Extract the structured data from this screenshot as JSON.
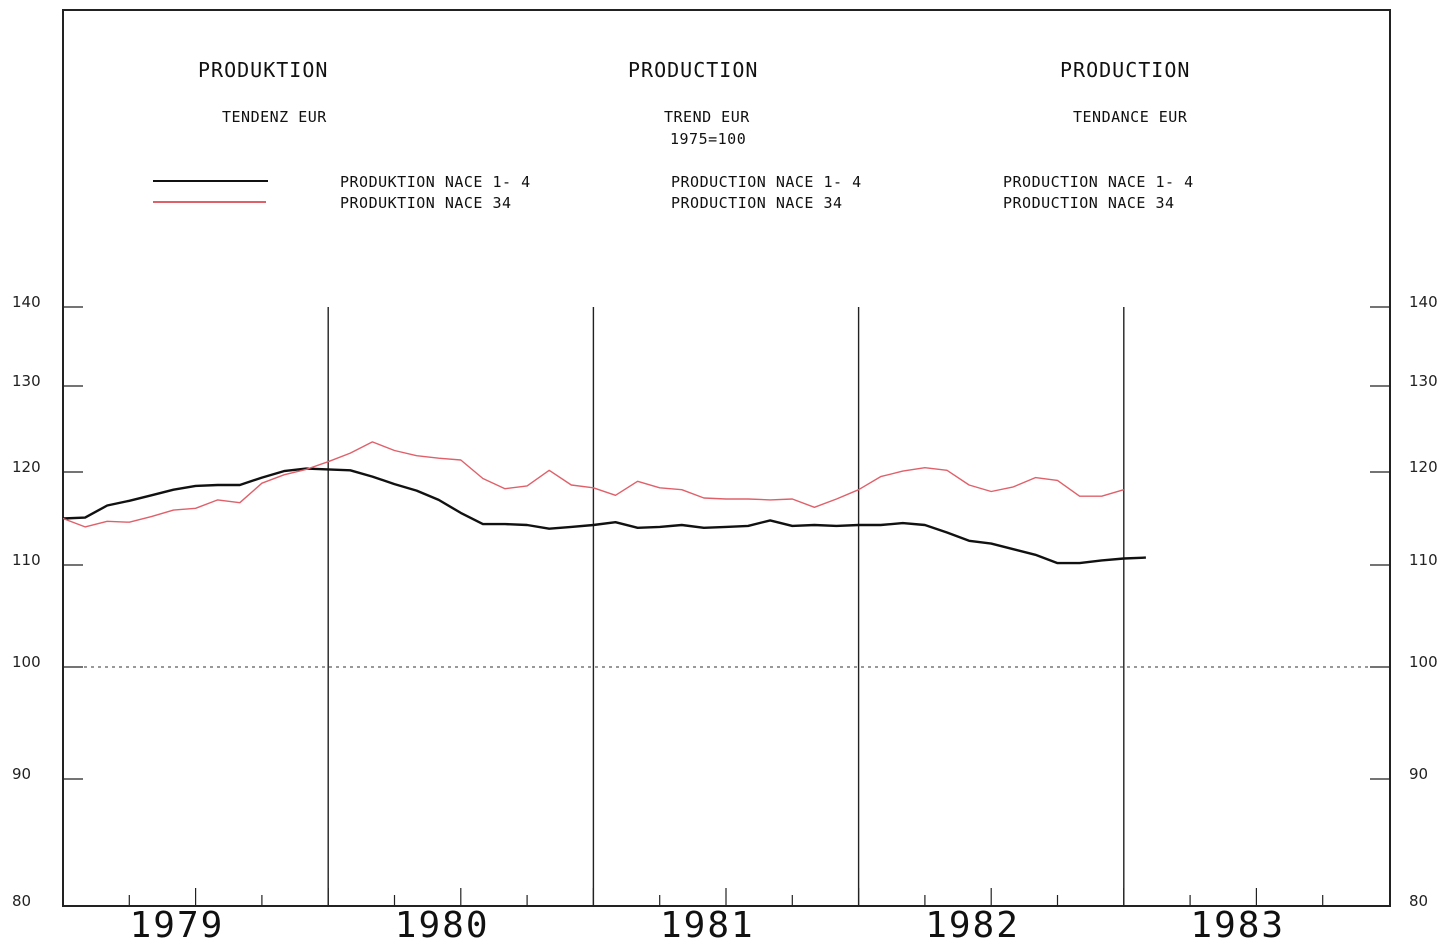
{
  "headers": [
    {
      "title": "PRODUKTION",
      "subtitle": "TENDENZ EUR",
      "legend": [
        "PRODUKTION NACE 1- 4",
        "PRODUKTION NACE 34"
      ]
    },
    {
      "title": "PRODUCTION",
      "subtitle": "TREND EUR",
      "base": "1975=100",
      "legend": [
        "PRODUCTION NACE 1- 4",
        "PRODUCTION NACE 34"
      ]
    },
    {
      "title": "PRODUCTION",
      "subtitle": "TENDANCE EUR",
      "legend": [
        "PRODUCTION NACE 1- 4",
        "PRODUCTION NACE 34"
      ]
    }
  ],
  "chart_data": {
    "type": "line",
    "title": "",
    "xlabel": "",
    "ylabel": "",
    "ylim": [
      80,
      140
    ],
    "yticks": [
      80,
      90,
      100,
      110,
      120,
      130,
      140
    ],
    "years": [
      "1979",
      "1980",
      "1981",
      "1982",
      "1983"
    ],
    "x_unit": "months from Jan 1979",
    "reference_line": 100,
    "grid": false,
    "series": [
      {
        "name": "PRODUKTION NACE 1- 4",
        "color": "#111111",
        "x": [
          0,
          1,
          2,
          3,
          4,
          5,
          6,
          7,
          8,
          9,
          10,
          11,
          12,
          13,
          14,
          15,
          16,
          17,
          18,
          19,
          20,
          21,
          22,
          23,
          24,
          25,
          26,
          27,
          28,
          29,
          30,
          31,
          32,
          33,
          34,
          35,
          36,
          37,
          38,
          39,
          40,
          41,
          42,
          43,
          44,
          45,
          46,
          47,
          48,
          49
        ],
        "values": [
          115,
          115.1,
          116.4,
          116.9,
          117.5,
          118.1,
          118.5,
          118.6,
          118.6,
          119.4,
          120.1,
          120.4,
          120.3,
          120.2,
          119.5,
          118.7,
          118.0,
          117.0,
          115.6,
          114.4,
          114.4,
          114.3,
          113.9,
          114.1,
          114.3,
          114.6,
          114.0,
          114.1,
          114.3,
          114.0,
          114.1,
          114.2,
          114.8,
          114.2,
          114.3,
          114.2,
          114.3,
          114.3,
          114.5,
          114.3,
          113.5,
          112.6,
          112.3,
          111.7,
          111.1,
          110.2,
          110.2,
          110.5,
          110.7,
          110.8
        ]
      },
      {
        "name": "PRODUKTION NACE 34",
        "color": "#e0606a",
        "x": [
          0,
          1,
          2,
          3,
          4,
          5,
          6,
          7,
          8,
          9,
          10,
          11,
          12,
          13,
          14,
          15,
          16,
          17,
          18,
          19,
          20,
          21,
          22,
          23,
          24,
          25,
          26,
          27,
          28,
          29,
          30,
          31,
          32,
          33,
          34,
          35,
          36,
          37,
          38,
          39,
          40,
          41,
          42,
          43,
          44,
          45,
          46,
          47,
          48
        ],
        "values": [
          115,
          114.1,
          114.7,
          114.6,
          115.2,
          115.9,
          116.1,
          117.0,
          116.7,
          118.8,
          119.7,
          120.3,
          121.2,
          122.2,
          123.5,
          122.5,
          121.9,
          121.6,
          121.4,
          119.3,
          118.2,
          118.5,
          120.2,
          118.6,
          118.3,
          117.5,
          119.0,
          118.3,
          118.1,
          117.2,
          117.1,
          117.1,
          117.0,
          117.1,
          116.2,
          117.1,
          118.1,
          119.5,
          120.1,
          120.5,
          120.2,
          118.6,
          117.9,
          118.4,
          119.4,
          119.1,
          117.4,
          117.4,
          118.1
        ]
      }
    ]
  }
}
